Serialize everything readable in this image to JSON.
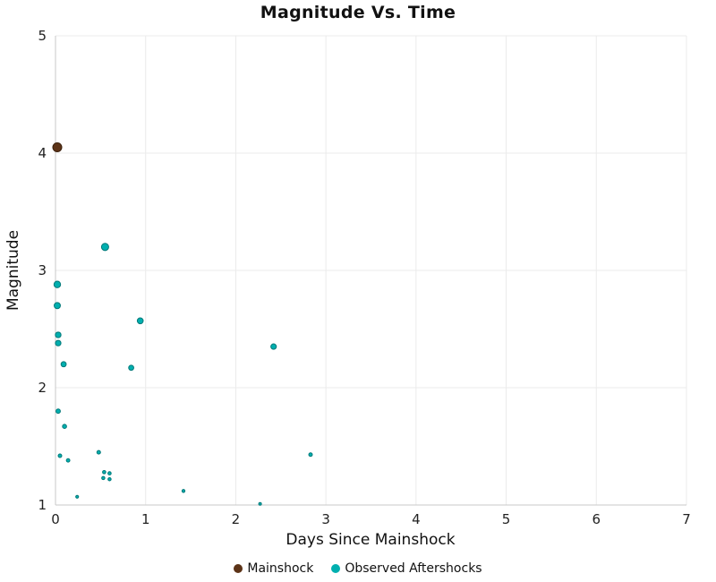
{
  "title": "Magnitude Vs. Time",
  "axes": {
    "xlabel": "Days Since Mainshock",
    "ylabel": "Magnitude"
  },
  "legend": [
    {
      "label": "Mainshock",
      "color": "#5C3317",
      "stroke": "#3a1f0b"
    },
    {
      "label": "Observed Aftershocks",
      "color": "#00AFAF",
      "stroke": "#007878"
    }
  ],
  "chart_data": {
    "type": "scatter",
    "title": "Magnitude Vs. Time",
    "xlabel": "Days Since Mainshock",
    "ylabel": "Magnitude",
    "xlim": [
      0,
      7
    ],
    "ylim": [
      1,
      5
    ],
    "x_ticks": [
      0,
      1,
      2,
      3,
      4,
      5,
      6,
      7
    ],
    "y_ticks": [
      1,
      2,
      3,
      4,
      5
    ],
    "grid": true,
    "legend_position": "bottom",
    "size_encodes": "magnitude",
    "series": [
      {
        "name": "Mainshock",
        "color": "#5C3317",
        "stroke": "#3a1f0b",
        "points": [
          [
            0.02,
            4.05
          ]
        ]
      },
      {
        "name": "Observed Aftershocks",
        "color": "#00AFAF",
        "stroke": "#007878",
        "points": [
          [
            0.02,
            2.88
          ],
          [
            0.02,
            2.7
          ],
          [
            0.03,
            2.45
          ],
          [
            0.03,
            2.38
          ],
          [
            0.09,
            2.2
          ],
          [
            0.55,
            3.2
          ],
          [
            0.94,
            2.57
          ],
          [
            0.84,
            2.17
          ],
          [
            2.42,
            2.35
          ],
          [
            0.03,
            1.8
          ],
          [
            0.1,
            1.67
          ],
          [
            0.05,
            1.42
          ],
          [
            0.14,
            1.38
          ],
          [
            0.24,
            1.07
          ],
          [
            0.48,
            1.45
          ],
          [
            0.54,
            1.28
          ],
          [
            0.6,
            1.27
          ],
          [
            0.53,
            1.23
          ],
          [
            0.6,
            1.22
          ],
          [
            1.42,
            1.12
          ],
          [
            2.27,
            1.01
          ],
          [
            2.83,
            1.43
          ]
        ]
      }
    ]
  }
}
